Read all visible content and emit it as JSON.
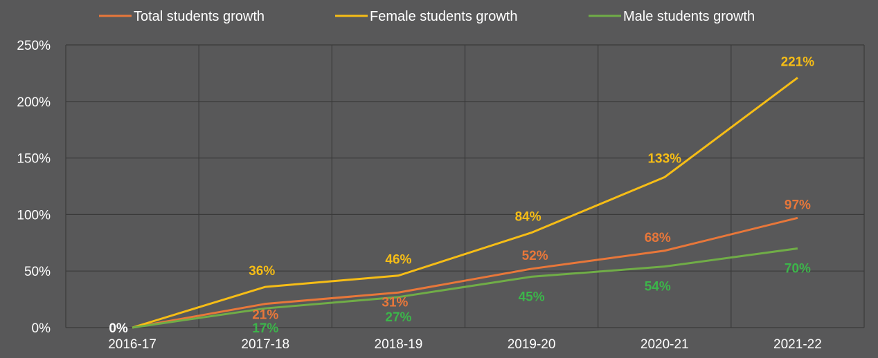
{
  "chart_data": {
    "type": "line",
    "categories": [
      "2016-17",
      "2017-18",
      "2018-19",
      "2019-20",
      "2020-21",
      "2021-22"
    ],
    "series": [
      {
        "name": "Total students growth",
        "color": "#E8773A",
        "values": [
          0,
          21,
          31,
          52,
          68,
          97
        ],
        "labels": [
          "",
          "21%",
          "31%",
          "52%",
          "68%",
          "97%"
        ]
      },
      {
        "name": "Female students growth",
        "color": "#F6BD16",
        "values": [
          0,
          36,
          46,
          84,
          133,
          221
        ],
        "labels": [
          "",
          "36%",
          "46%",
          "84%",
          "133%",
          "221%"
        ]
      },
      {
        "name": "Male students growth",
        "color": "#70AD47",
        "values": [
          0,
          17,
          27,
          45,
          54,
          70
        ],
        "labels": [
          "",
          "17%",
          "27%",
          "45%",
          "54%",
          "70%"
        ]
      }
    ],
    "origin_label": "0%",
    "y_ticks": [
      "0%",
      "50%",
      "100%",
      "150%",
      "200%",
      "250%"
    ],
    "ylim": [
      0,
      250
    ],
    "grid": true,
    "legend_position": "top",
    "label_colors": {
      "Total students growth": "#E8773A",
      "Female students growth": "#F6BD16",
      "Male students growth": "#3CB54A"
    },
    "background": "#585859",
    "gridline_color": "#3A3A3A"
  }
}
